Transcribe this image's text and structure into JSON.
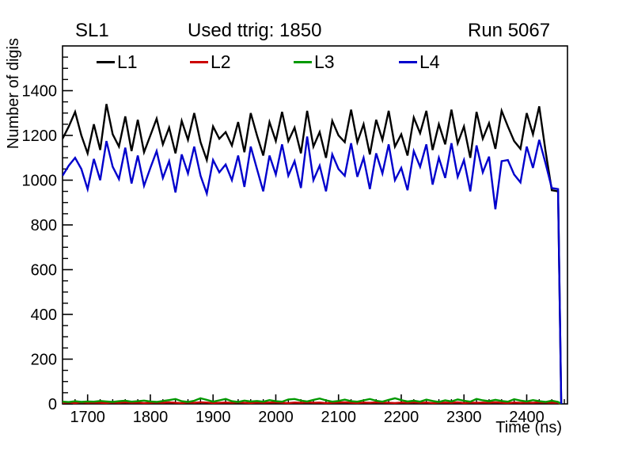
{
  "header": {
    "left_title": "SL1",
    "center_title": "Used ttrig: 1850",
    "right_title": "Run 5067"
  },
  "legend": {
    "items": [
      {
        "label": "L1",
        "color": "#000000"
      },
      {
        "label": "L2",
        "color": "#cc0000"
      },
      {
        "label": "L3",
        "color": "#009900"
      },
      {
        "label": "L4",
        "color": "#0000cc"
      }
    ]
  },
  "chart_data": {
    "type": "line",
    "title": "Used ttrig: 1850",
    "subtitle_left": "SL1",
    "subtitle_right": "Run 5067",
    "xlabel": "Time (ns)",
    "ylabel": "Number of digis",
    "xlim": [
      1660,
      2465
    ],
    "ylim": [
      0,
      1600
    ],
    "x_major_ticks": [
      1700,
      1800,
      1900,
      2000,
      2100,
      2200,
      2300,
      2400
    ],
    "y_major_ticks": [
      0,
      200,
      400,
      600,
      800,
      1000,
      1200,
      1400
    ],
    "x_minor_step": 20,
    "y_minor_step": 50,
    "grid": false,
    "legend_position": "top-inside",
    "x": [
      1660,
      1670,
      1680,
      1690,
      1700,
      1710,
      1720,
      1730,
      1740,
      1750,
      1760,
      1770,
      1780,
      1790,
      1800,
      1810,
      1820,
      1830,
      1840,
      1850,
      1860,
      1870,
      1880,
      1890,
      1900,
      1910,
      1920,
      1930,
      1940,
      1950,
      1960,
      1970,
      1980,
      1990,
      2000,
      2010,
      2020,
      2030,
      2040,
      2050,
      2060,
      2070,
      2080,
      2090,
      2100,
      2110,
      2120,
      2130,
      2140,
      2150,
      2160,
      2170,
      2180,
      2190,
      2200,
      2210,
      2220,
      2230,
      2240,
      2250,
      2260,
      2270,
      2280,
      2290,
      2300,
      2310,
      2320,
      2330,
      2340,
      2350,
      2360,
      2370,
      2380,
      2390,
      2400,
      2410,
      2420,
      2430,
      2440,
      2450,
      2455
    ],
    "series": [
      {
        "name": "L1",
        "color": "#000000",
        "values": [
          1185,
          1240,
          1305,
          1200,
          1120,
          1250,
          1135,
          1340,
          1205,
          1150,
          1285,
          1130,
          1270,
          1125,
          1200,
          1275,
          1160,
          1235,
          1120,
          1265,
          1180,
          1300,
          1170,
          1090,
          1240,
          1185,
          1215,
          1155,
          1260,
          1125,
          1300,
          1200,
          1110,
          1260,
          1175,
          1305,
          1175,
          1235,
          1120,
          1310,
          1150,
          1215,
          1100,
          1265,
          1200,
          1170,
          1315,
          1170,
          1250,
          1115,
          1270,
          1180,
          1310,
          1150,
          1205,
          1110,
          1280,
          1210,
          1310,
          1135,
          1250,
          1160,
          1315,
          1165,
          1240,
          1100,
          1305,
          1185,
          1255,
          1140,
          1310,
          1240,
          1175,
          1140,
          1300,
          1205,
          1330,
          1130,
          955,
          950,
          0
        ]
      },
      {
        "name": "L2",
        "color": "#cc0000",
        "values": [
          5,
          6,
          4,
          7,
          5,
          6,
          5,
          4,
          6,
          5,
          7,
          5,
          6,
          4,
          5,
          6,
          5,
          7,
          5,
          4,
          6,
          5,
          7,
          6,
          4,
          5,
          6,
          5,
          7,
          5,
          4,
          6,
          5,
          6,
          7,
          5,
          4,
          6,
          5,
          7,
          5,
          6,
          4,
          5,
          6,
          7,
          5,
          4,
          6,
          5,
          7,
          6,
          5,
          4,
          6,
          5,
          7,
          5,
          6,
          4,
          5,
          6,
          5,
          7,
          4,
          6,
          5,
          6,
          5,
          7,
          5,
          4,
          6,
          5,
          6,
          5,
          7,
          6,
          5,
          5,
          0
        ]
      },
      {
        "name": "L3",
        "color": "#009900",
        "values": [
          10,
          8,
          12,
          9,
          11,
          10,
          13,
          11,
          9,
          12,
          14,
          10,
          12,
          15,
          11,
          9,
          13,
          17,
          22,
          12,
          9,
          14,
          25,
          18,
          10,
          16,
          22,
          12,
          9,
          15,
          11,
          13,
          10,
          17,
          12,
          10,
          20,
          22,
          15,
          11,
          18,
          24,
          16,
          10,
          13,
          19,
          12,
          10,
          16,
          22,
          14,
          10,
          18,
          25,
          17,
          11,
          14,
          10,
          19,
          13,
          9,
          16,
          11,
          20,
          14,
          10,
          22,
          16,
          12,
          18,
          13,
          10,
          21,
          15,
          11,
          17,
          12,
          9,
          14,
          9,
          0
        ]
      },
      {
        "name": "L4",
        "color": "#0000cc",
        "values": [
          1020,
          1065,
          1100,
          1050,
          960,
          1095,
          1000,
          1175,
          1060,
          1005,
          1145,
          985,
          1110,
          975,
          1055,
          1130,
          1010,
          1085,
          945,
          1115,
          1030,
          1150,
          1020,
          940,
          1090,
          1035,
          1070,
          1000,
          1110,
          970,
          1150,
          1050,
          950,
          1110,
          1025,
          1160,
          1020,
          1085,
          965,
          1195,
          1000,
          1065,
          950,
          1115,
          1050,
          1020,
          1165,
          1015,
          1100,
          960,
          1120,
          1030,
          1160,
          1000,
          1055,
          955,
          1130,
          1060,
          1160,
          980,
          1100,
          1010,
          1165,
          1015,
          1090,
          950,
          1155,
          1035,
          1105,
          870,
          1085,
          1090,
          1025,
          990,
          1150,
          1055,
          1180,
          1075,
          965,
          960,
          0
        ]
      }
    ]
  }
}
